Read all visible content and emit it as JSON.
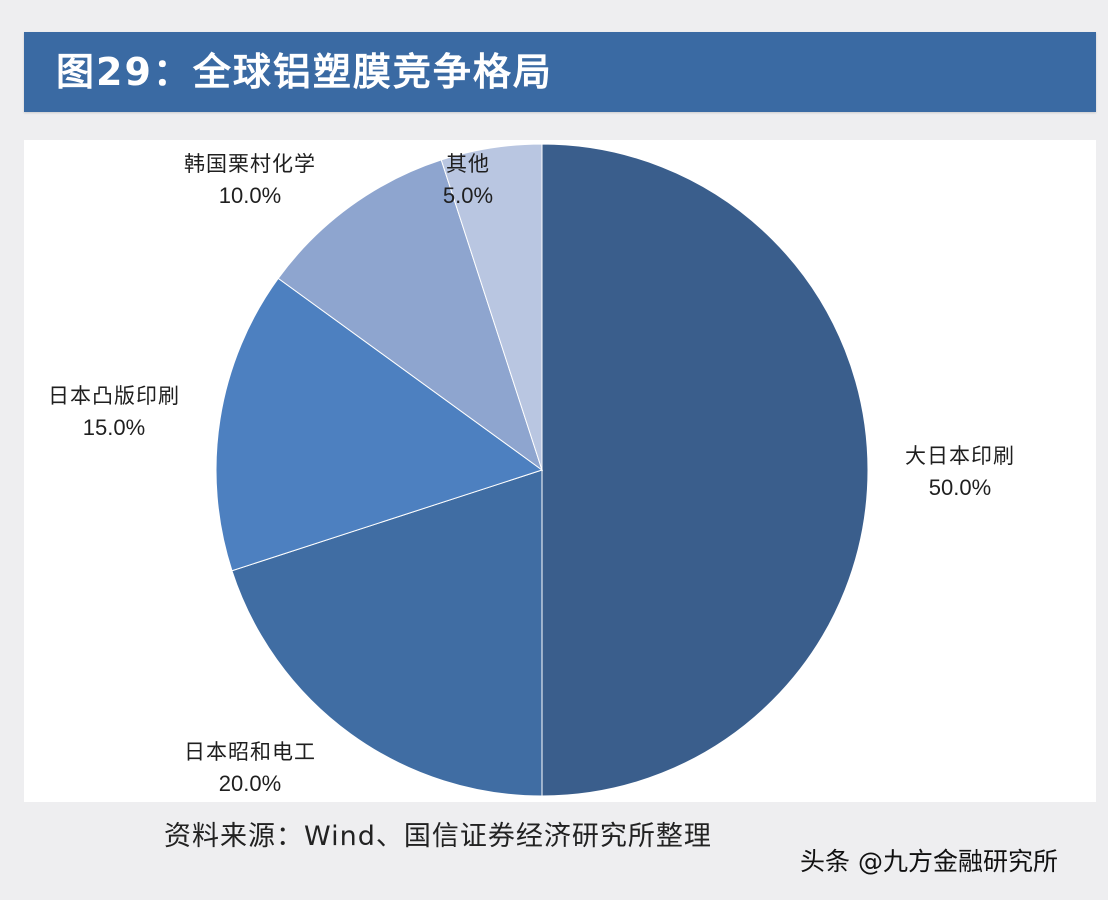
{
  "header": {
    "title": "图29：全球铝塑膜竞争格局"
  },
  "chart_data": {
    "type": "pie",
    "title": "图29：全球铝塑膜竞争格局",
    "start_angle_deg": 0,
    "direction": "clockwise",
    "slices": [
      {
        "name": "大日本印刷",
        "value": 50.0,
        "label": "50.0%",
        "color": "#3a5e8c"
      },
      {
        "name": "日本昭和电工",
        "value": 20.0,
        "label": "20.0%",
        "color": "#406da3"
      },
      {
        "name": "日本凸版印刷",
        "value": 15.0,
        "label": "15.0%",
        "color": "#4d80c0"
      },
      {
        "name": "韩国栗村化学",
        "value": 10.0,
        "label": "10.0%",
        "color": "#8ea5cf"
      },
      {
        "name": "其他",
        "value": 5.0,
        "label": "5.0%",
        "color": "#b9c6e1"
      }
    ]
  },
  "footer": {
    "source": "资料来源：Wind、国信证券经济研究所整理",
    "watermark": "头条 @九方金融研究所"
  }
}
